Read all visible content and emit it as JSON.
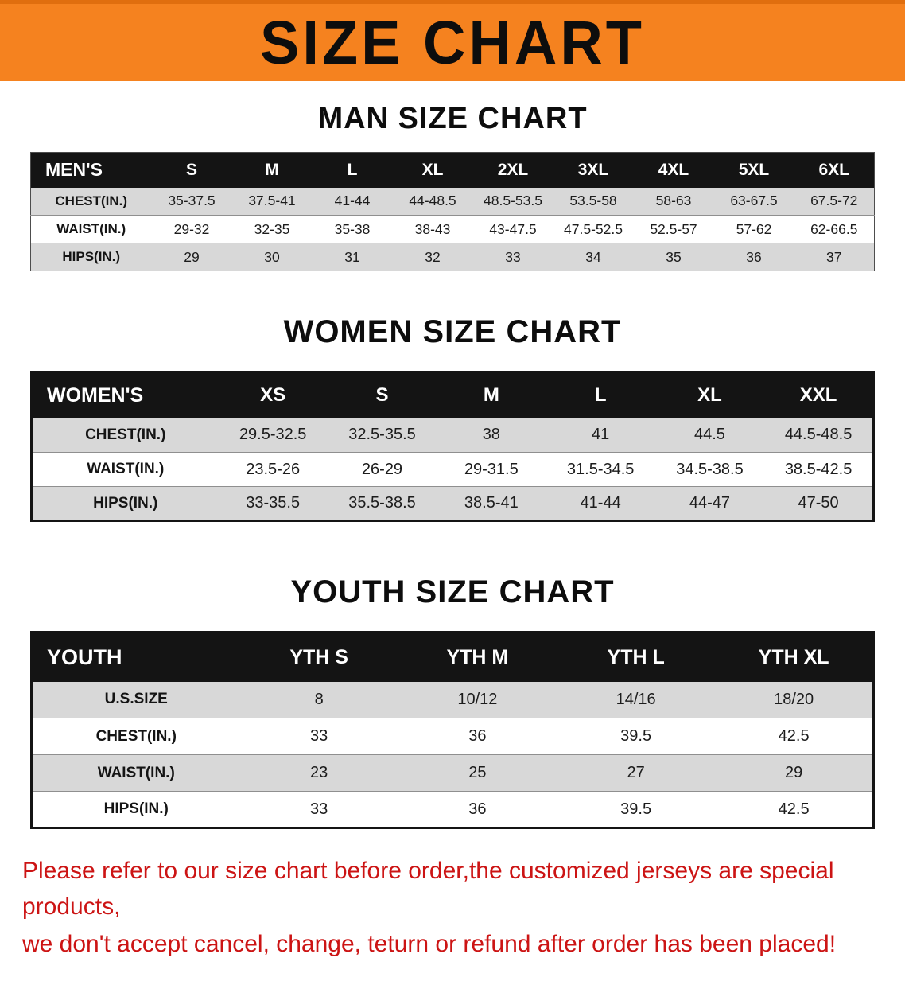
{
  "banner": {
    "title": "SIZE CHART",
    "bg_color": "#f5821f"
  },
  "sections": [
    {
      "heading": "MAN SIZE CHART",
      "table": {
        "header": [
          "MEN'S",
          "S",
          "M",
          "L",
          "XL",
          "2XL",
          "3XL",
          "4XL",
          "5XL",
          "6XL"
        ],
        "rows": [
          [
            "CHEST(IN.)",
            "35-37.5",
            "37.5-41",
            "41-44",
            "44-48.5",
            "48.5-53.5",
            "53.5-58",
            "58-63",
            "63-67.5",
            "67.5-72"
          ],
          [
            "WAIST(IN.)",
            "29-32",
            "32-35",
            "35-38",
            "38-43",
            "43-47.5",
            "47.5-52.5",
            "52.5-57",
            "57-62",
            "62-66.5"
          ],
          [
            "HIPS(IN.)",
            "29",
            "30",
            "31",
            "32",
            "33",
            "34",
            "35",
            "36",
            "37"
          ]
        ]
      }
    },
    {
      "heading": "WOMEN SIZE CHART",
      "table": {
        "header": [
          "WOMEN'S",
          "XS",
          "S",
          "M",
          "L",
          "XL",
          "XXL"
        ],
        "rows": [
          [
            "CHEST(IN.)",
            "29.5-32.5",
            "32.5-35.5",
            "38",
            "41",
            "44.5",
            "44.5-48.5"
          ],
          [
            "WAIST(IN.)",
            "23.5-26",
            "26-29",
            "29-31.5",
            "31.5-34.5",
            "34.5-38.5",
            "38.5-42.5"
          ],
          [
            "HIPS(IN.)",
            "33-35.5",
            "35.5-38.5",
            "38.5-41",
            "41-44",
            "44-47",
            "47-50"
          ]
        ]
      }
    },
    {
      "heading": "YOUTH SIZE CHART",
      "table": {
        "header": [
          "YOUTH",
          "YTH S",
          "YTH M",
          "YTH L",
          "YTH XL"
        ],
        "rows": [
          [
            "U.S.SIZE",
            "8",
            "10/12",
            "14/16",
            "18/20"
          ],
          [
            "CHEST(IN.)",
            "33",
            "36",
            "39.5",
            "42.5"
          ],
          [
            "WAIST(IN.)",
            "23",
            "25",
            "27",
            "29"
          ],
          [
            "HIPS(IN.)",
            "33",
            "36",
            "39.5",
            "42.5"
          ]
        ]
      }
    }
  ],
  "disclaimer": {
    "line1": "Please refer to our size chart before order,the customized jerseys are special products,",
    "line2": "we don't accept cancel, change, teturn or refund after order has been placed!",
    "color": "#cc1414"
  }
}
